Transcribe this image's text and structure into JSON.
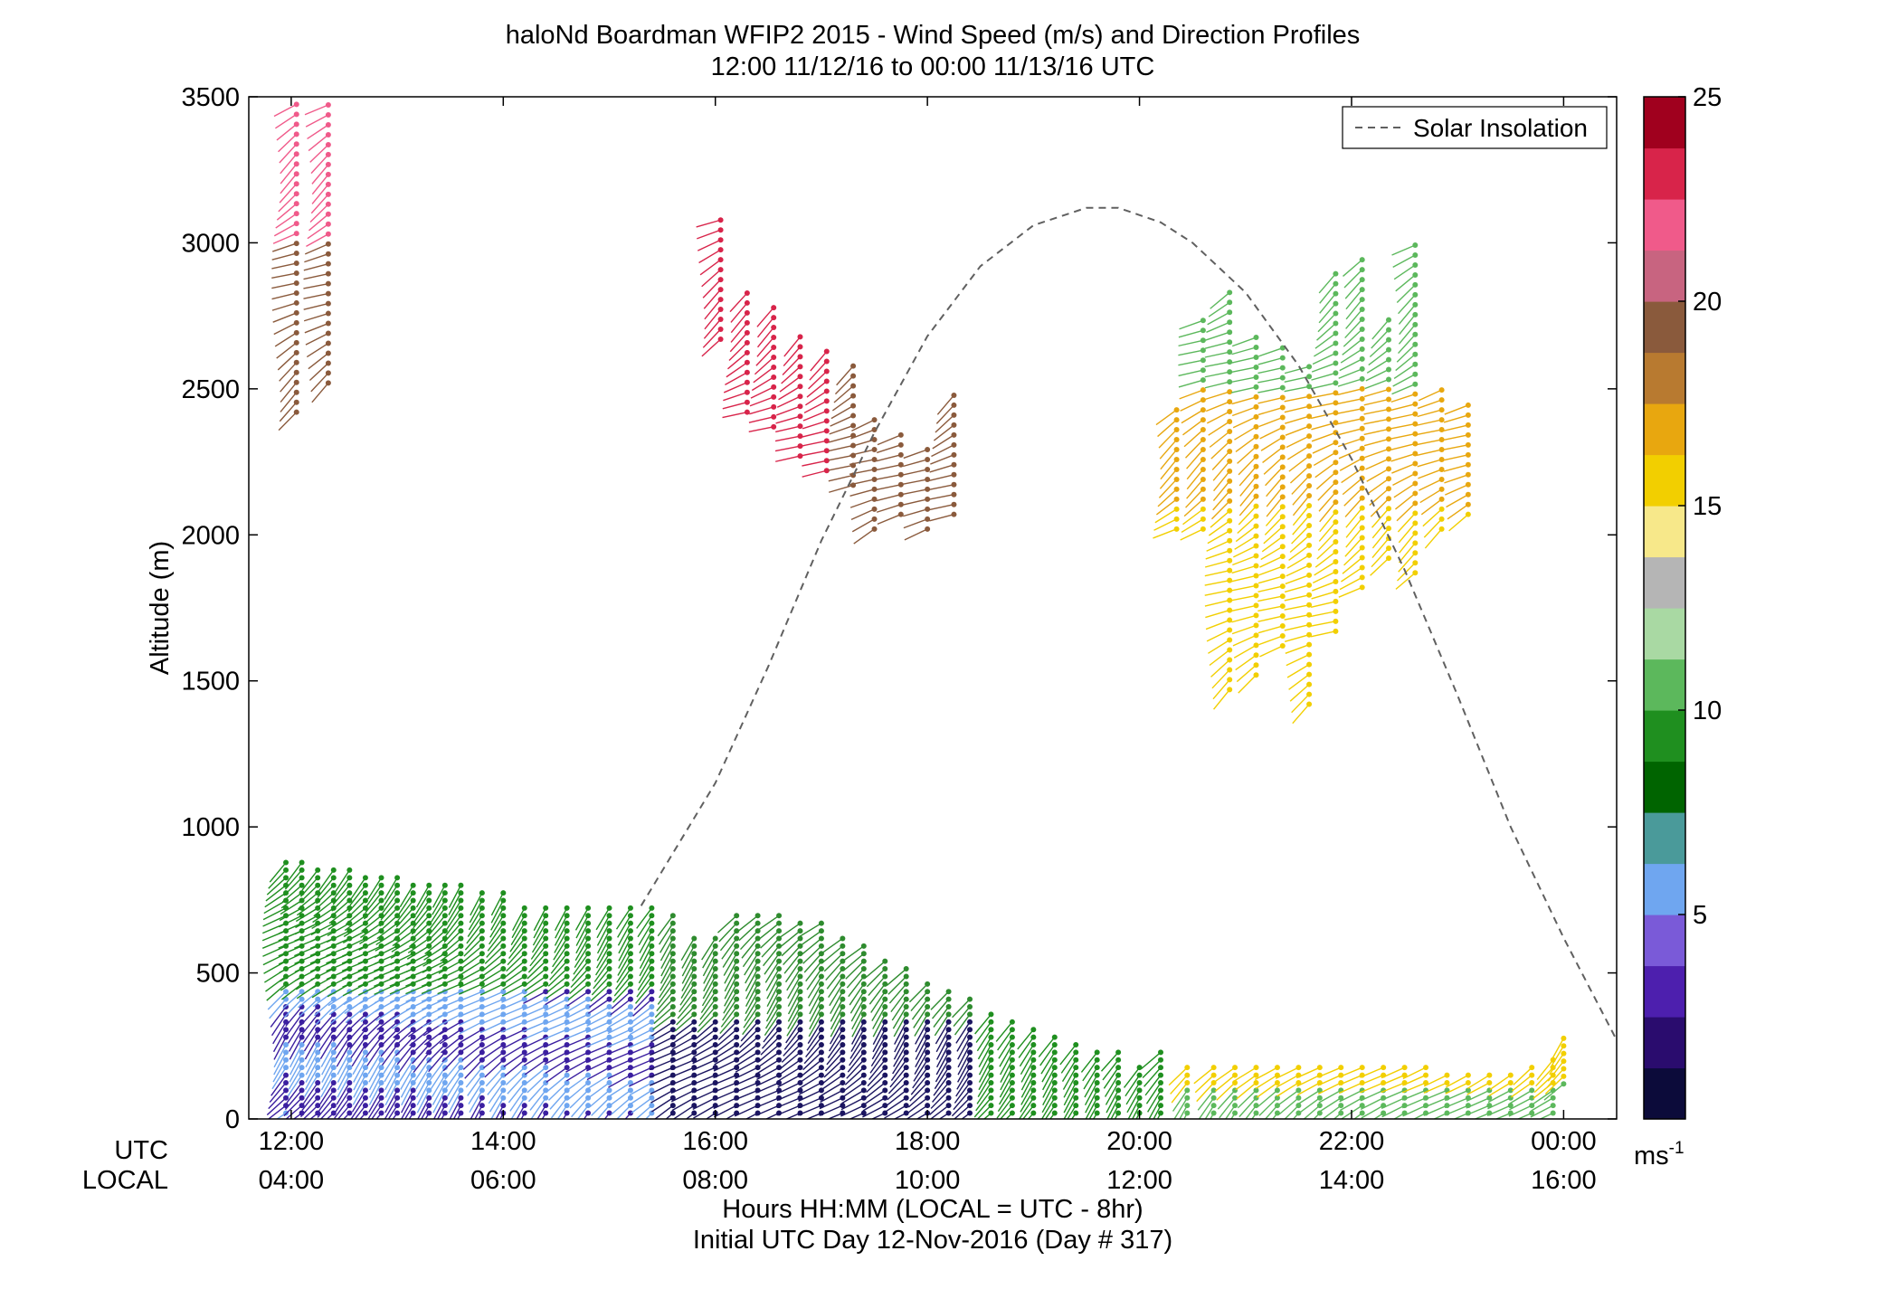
{
  "chart_data": {
    "type": "wind-barb-profile",
    "title": "haloNd Boardman WFIP2 2015 - Wind Speed (m/s) and Direction Profiles",
    "subtitle": "12:00 11/12/16 to 00:00 11/13/16  UTC",
    "ylabel": "Altitude (m)",
    "xlabel": "Hours HH:MM  (LOCAL = UTC - 8hr)",
    "xlabel2": "Initial UTC Day 12-Nov-2016 (Day # 317)",
    "utc_row_label": "UTC",
    "local_row_label": "LOCAL",
    "ylim": [
      0,
      3500
    ],
    "xlim_hours_utc": [
      11.6,
      24.5
    ],
    "y_ticks": [
      "0",
      "500",
      "1000",
      "1500",
      "2000",
      "2500",
      "3000",
      "3500"
    ],
    "y_tick_values": [
      0,
      500,
      1000,
      1500,
      2000,
      2500,
      3000,
      3500
    ],
    "x_ticks_utc": [
      "12:00",
      "14:00",
      "16:00",
      "18:00",
      "20:00",
      "22:00",
      "00:00"
    ],
    "x_ticks_local": [
      "04:00",
      "06:00",
      "08:00",
      "10:00",
      "12:00",
      "14:00",
      "16:00"
    ],
    "x_tick_hours": [
      12,
      14,
      16,
      18,
      20,
      22,
      24
    ],
    "legend": {
      "entries": [
        "Solar Insolation"
      ],
      "placement": "top-right"
    },
    "colorbar": {
      "ticks": [
        "5",
        "10",
        "15",
        "20",
        "25"
      ],
      "tick_values": [
        5,
        10,
        15,
        20,
        25
      ],
      "range": [
        0,
        25
      ],
      "unit": "ms",
      "unit_superscript": "-1",
      "colors": [
        "#0c0b3a",
        "#2a0c6e",
        "#4d1fae",
        "#7a5ad8",
        "#6fa6f0",
        "#4a9a9a",
        "#006400",
        "#1f8f1f",
        "#5cb85c",
        "#a9d9a3",
        "#b5b5b5",
        "#f7e88a",
        "#f2cf00",
        "#e8a70f",
        "#b87a30",
        "#8a5a3c",
        "#c86480",
        "#f05a8a",
        "#d8244a",
        "#a0001e"
      ]
    },
    "solar_insolation_curve": {
      "style": "dashed",
      "color": "#606060",
      "x_hours_utc": [
        15.3,
        16.0,
        16.5,
        17.0,
        17.5,
        18.0,
        18.5,
        19.0,
        19.5,
        19.8,
        20.2,
        20.5,
        21.0,
        21.5,
        22.0,
        22.5,
        23.0,
        23.5,
        24.0,
        24.5
      ],
      "y_altitude_m": [
        730,
        1150,
        1550,
        1980,
        2350,
        2680,
        2920,
        3060,
        3120,
        3120,
        3070,
        3000,
        2830,
        2580,
        2260,
        1880,
        1450,
        1000,
        620,
        270
      ]
    },
    "profiles": [
      {
        "t": 11.95,
        "top": 900,
        "bottom": 0
      },
      {
        "t": 12.1,
        "top": 880,
        "bottom": 0
      },
      {
        "t": 12.25,
        "top": 870,
        "bottom": 0
      },
      {
        "t": 12.4,
        "top": 870,
        "bottom": 0
      },
      {
        "t": 12.55,
        "top": 860,
        "bottom": 0
      },
      {
        "t": 12.7,
        "top": 850,
        "bottom": 0
      },
      {
        "t": 12.85,
        "top": 840,
        "bottom": 0
      },
      {
        "t": 13.0,
        "top": 830,
        "bottom": 0
      },
      {
        "t": 13.15,
        "top": 810,
        "bottom": 0
      },
      {
        "t": 13.3,
        "top": 810,
        "bottom": 0
      },
      {
        "t": 13.45,
        "top": 800,
        "bottom": 0
      },
      {
        "t": 13.6,
        "top": 820,
        "bottom": 0
      },
      {
        "t": 13.8,
        "top": 780,
        "bottom": 0
      },
      {
        "t": 14.0,
        "top": 780,
        "bottom": 0
      },
      {
        "t": 14.2,
        "top": 740,
        "bottom": 0
      },
      {
        "t": 14.4,
        "top": 740,
        "bottom": 0
      },
      {
        "t": 14.6,
        "top": 740,
        "bottom": 0
      },
      {
        "t": 14.8,
        "top": 740,
        "bottom": 0
      },
      {
        "t": 15.0,
        "top": 730,
        "bottom": 0
      },
      {
        "t": 15.2,
        "top": 730,
        "bottom": 0
      },
      {
        "t": 15.4,
        "top": 730,
        "bottom": 0
      },
      {
        "t": 15.6,
        "top": 720,
        "bottom": 0
      },
      {
        "t": 15.8,
        "top": 620,
        "bottom": 0
      },
      {
        "t": 16.0,
        "top": 640,
        "bottom": 0
      },
      {
        "t": 16.2,
        "top": 700,
        "bottom": 0
      },
      {
        "t": 16.4,
        "top": 710,
        "bottom": 0
      },
      {
        "t": 16.6,
        "top": 710,
        "bottom": 0
      },
      {
        "t": 16.8,
        "top": 690,
        "bottom": 0
      },
      {
        "t": 17.0,
        "top": 670,
        "bottom": 0
      },
      {
        "t": 17.2,
        "top": 640,
        "bottom": 0
      },
      {
        "t": 17.4,
        "top": 600,
        "bottom": 0
      },
      {
        "t": 17.6,
        "top": 560,
        "bottom": 0
      },
      {
        "t": 17.8,
        "top": 520,
        "bottom": 0
      },
      {
        "t": 18.0,
        "top": 480,
        "bottom": 0
      },
      {
        "t": 18.2,
        "top": 450,
        "bottom": 0
      },
      {
        "t": 18.4,
        "top": 420,
        "bottom": 0
      },
      {
        "t": 18.6,
        "top": 380,
        "bottom": 0
      },
      {
        "t": 18.8,
        "top": 340,
        "bottom": 0
      },
      {
        "t": 19.0,
        "top": 310,
        "bottom": 0
      },
      {
        "t": 19.2,
        "top": 290,
        "bottom": 0
      },
      {
        "t": 19.4,
        "top": 270,
        "bottom": 0
      },
      {
        "t": 19.6,
        "top": 250,
        "bottom": 0
      },
      {
        "t": 19.8,
        "top": 230,
        "bottom": 0
      },
      {
        "t": 20.0,
        "top": 200,
        "bottom": 0
      },
      {
        "t": 20.2,
        "top": 230,
        "bottom": 0
      },
      {
        "t": 20.45,
        "top": 180,
        "bottom": 0
      },
      {
        "t": 20.7,
        "top": 200,
        "bottom": 0
      },
      {
        "t": 20.9,
        "top": 200,
        "bottom": 0
      },
      {
        "t": 21.1,
        "top": 200,
        "bottom": 0
      },
      {
        "t": 21.3,
        "top": 200,
        "bottom": 0
      },
      {
        "t": 21.5,
        "top": 200,
        "bottom": 0
      },
      {
        "t": 21.7,
        "top": 200,
        "bottom": 0
      },
      {
        "t": 21.9,
        "top": 200,
        "bottom": 0
      },
      {
        "t": 22.1,
        "top": 190,
        "bottom": 0
      },
      {
        "t": 22.3,
        "top": 190,
        "bottom": 0
      },
      {
        "t": 22.5,
        "top": 190,
        "bottom": 0
      },
      {
        "t": 22.7,
        "top": 190,
        "bottom": 0
      },
      {
        "t": 22.9,
        "top": 170,
        "bottom": 0
      },
      {
        "t": 23.1,
        "top": 160,
        "bottom": 0
      },
      {
        "t": 23.3,
        "top": 160,
        "bottom": 0
      },
      {
        "t": 23.5,
        "top": 170,
        "bottom": 0
      },
      {
        "t": 23.7,
        "top": 180,
        "bottom": 0
      },
      {
        "t": 23.9,
        "top": 210,
        "bottom": 0
      },
      {
        "t": 24.0,
        "top": 280,
        "bottom": 100
      },
      {
        "t": 12.05,
        "top": 3500,
        "bottom": 2400
      },
      {
        "t": 12.35,
        "top": 3500,
        "bottom": 2500
      },
      {
        "t": 16.05,
        "top": 3100,
        "bottom": 2650
      },
      {
        "t": 16.3,
        "top": 2850,
        "bottom": 2400
      },
      {
        "t": 16.55,
        "top": 2800,
        "bottom": 2350
      },
      {
        "t": 16.8,
        "top": 2700,
        "bottom": 2250
      },
      {
        "t": 17.05,
        "top": 2650,
        "bottom": 2200
      },
      {
        "t": 17.3,
        "top": 2600,
        "bottom": 2150
      },
      {
        "t": 17.5,
        "top": 2400,
        "bottom": 2000
      },
      {
        "t": 17.75,
        "top": 2350,
        "bottom": 2050
      },
      {
        "t": 18.0,
        "top": 2300,
        "bottom": 2000
      },
      {
        "t": 18.25,
        "top": 2500,
        "bottom": 2050
      },
      {
        "t": 20.35,
        "top": 2450,
        "bottom": 2000
      },
      {
        "t": 20.6,
        "top": 2750,
        "bottom": 2000
      },
      {
        "t": 20.85,
        "top": 2850,
        "bottom": 1450
      },
      {
        "t": 21.1,
        "top": 2700,
        "bottom": 1500
      },
      {
        "t": 21.35,
        "top": 2650,
        "bottom": 1600
      },
      {
        "t": 21.6,
        "top": 2600,
        "bottom": 1400
      },
      {
        "t": 21.85,
        "top": 2900,
        "bottom": 1650
      },
      {
        "t": 22.1,
        "top": 2950,
        "bottom": 1800
      },
      {
        "t": 22.35,
        "top": 2750,
        "bottom": 1900
      },
      {
        "t": 22.6,
        "top": 3000,
        "bottom": 1850
      },
      {
        "t": 22.85,
        "top": 2500,
        "bottom": 2000
      },
      {
        "t": 23.1,
        "top": 2450,
        "bottom": 2050
      }
    ]
  }
}
